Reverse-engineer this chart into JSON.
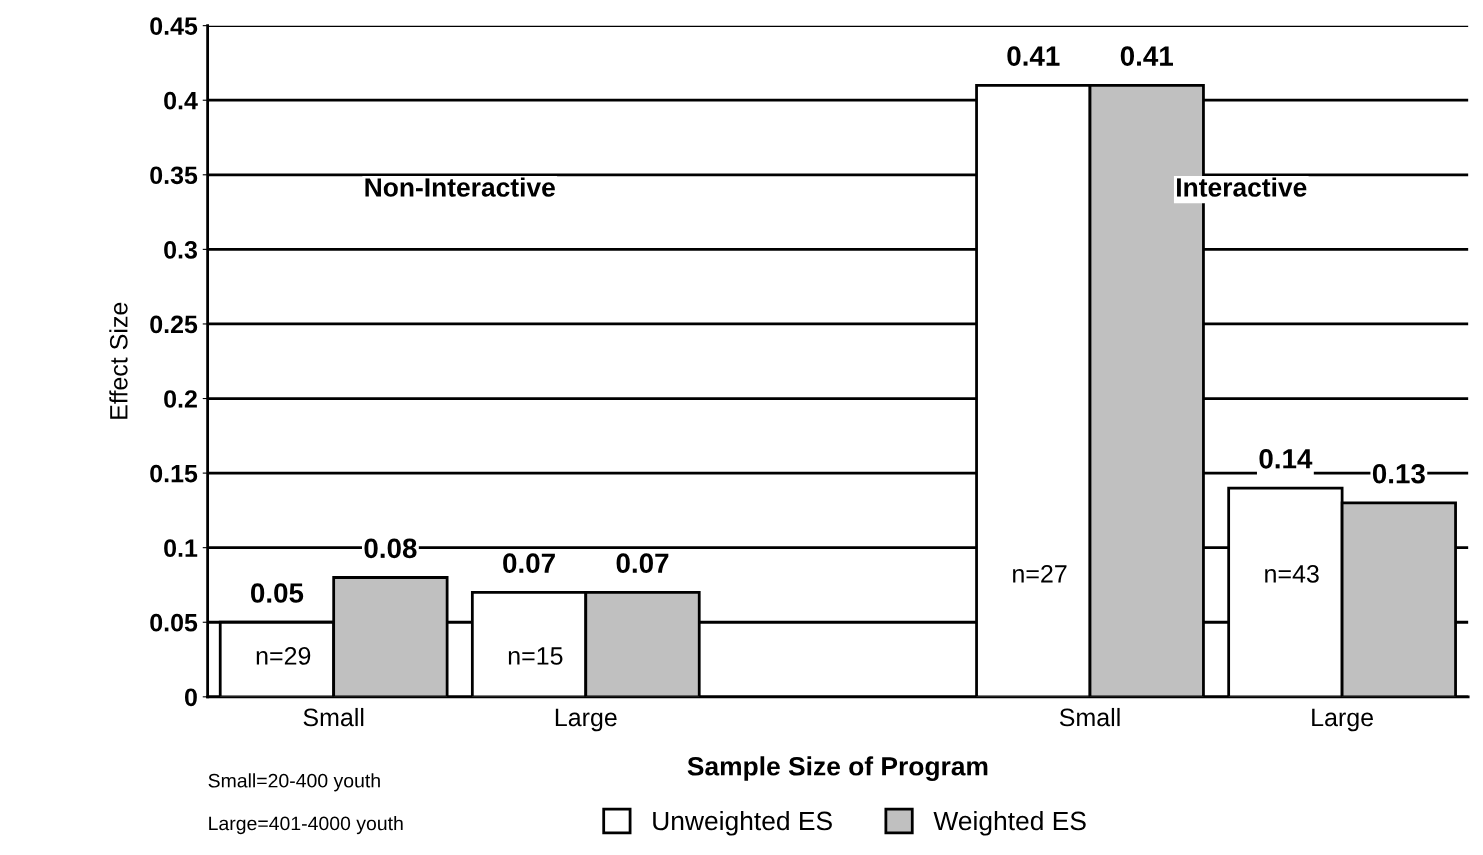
{
  "chart_data": {
    "type": "bar",
    "xlabel": "Sample Size of Program",
    "ylabel": "Effect Size",
    "categories": [
      "Small",
      "Large",
      null,
      "Small",
      "Large"
    ],
    "series": [
      {
        "name": "Unweighted ES",
        "color": "#ffffff",
        "values": [
          0.05,
          0.07,
          null,
          0.41,
          0.14
        ]
      },
      {
        "name": "Weighted ES",
        "color": "#c0c0c0",
        "values": [
          0.08,
          0.07,
          null,
          0.41,
          0.13
        ]
      }
    ],
    "ylim": [
      0,
      0.45
    ],
    "yticks": [
      0,
      0.05,
      0.1,
      0.15,
      0.2,
      0.25,
      0.3,
      0.35,
      0.4,
      0.45
    ],
    "grid": "y",
    "legend": "bottom",
    "data_labels": true,
    "annotations": [
      "Non-Interactive",
      "Interactive",
      "n=29",
      "n=15",
      "n=27",
      "n=43",
      "Small=20-400 youth",
      "Large=401-4000 youth"
    ]
  }
}
